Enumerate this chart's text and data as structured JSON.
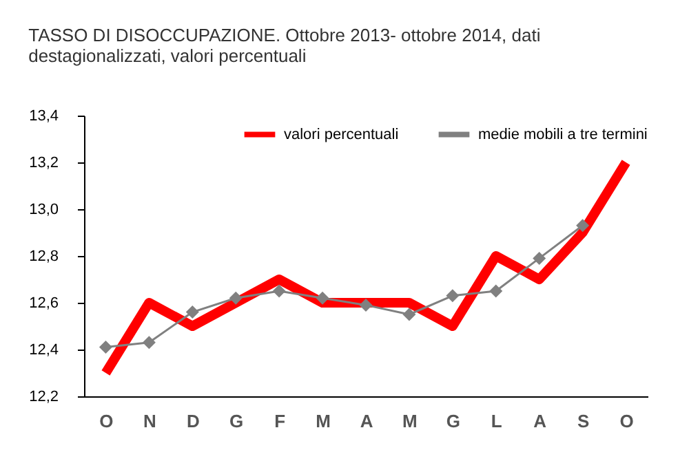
{
  "chart_data": {
    "type": "line",
    "title": "TASSO DI DISOCCUPAZIONE. Ottobre 2013- ottobre 2014, dati destagionalizzati, valori percentuali",
    "categories": [
      "O",
      "N",
      "D",
      "G",
      "F",
      "M",
      "A",
      "M",
      "G",
      "L",
      "A",
      "S",
      "O"
    ],
    "series": [
      {
        "name": "valori percentuali",
        "color": "#ff0000",
        "marker": "none",
        "values": [
          12.3,
          12.6,
          12.5,
          12.6,
          12.7,
          12.6,
          12.6,
          12.6,
          12.5,
          12.8,
          12.7,
          12.9,
          13.2
        ]
      },
      {
        "name": "medie mobili a tre termini",
        "color": "#808080",
        "marker": "diamond",
        "values": [
          12.41,
          12.43,
          12.56,
          12.62,
          12.65,
          12.62,
          12.59,
          12.55,
          12.63,
          12.65,
          12.79,
          12.93,
          null
        ]
      }
    ],
    "ylim": [
      12.2,
      13.4
    ],
    "yticks": [
      {
        "value": 12.2,
        "label": "12,2"
      },
      {
        "value": 12.4,
        "label": "12,4"
      },
      {
        "value": 12.6,
        "label": "12,6"
      },
      {
        "value": 12.8,
        "label": "12,8"
      },
      {
        "value": 13.0,
        "label": "13,0"
      },
      {
        "value": 13.2,
        "label": "13,2"
      },
      {
        "value": 13.4,
        "label": "13,4"
      }
    ],
    "grid": false,
    "legend": "top right",
    "line_style": "solid"
  }
}
